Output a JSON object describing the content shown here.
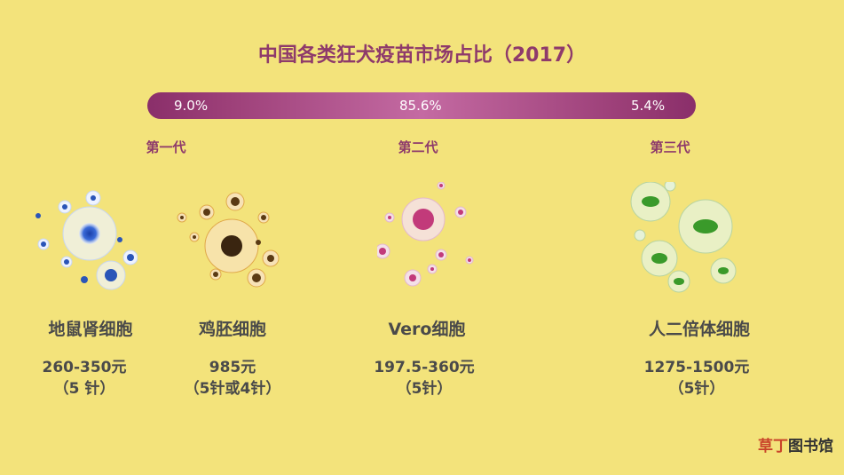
{
  "title": "中国各类狂犬疫苗市场占比（2017）",
  "bar": {
    "segments": [
      {
        "label": "9.0%",
        "value": 9.0
      },
      {
        "label": "85.6%",
        "value": 85.6
      },
      {
        "label": "5.4%",
        "value": 5.4
      }
    ]
  },
  "generations": [
    "第一代",
    "第二代",
    "第三代"
  ],
  "cells": [
    {
      "name": "地鼠肾细胞",
      "price": "260-350元",
      "doses": "（5 针）",
      "color": "#2a55b8"
    },
    {
      "name": "鸡胚细胞",
      "price": "985元",
      "doses": "（5针或4针）",
      "color": "#5a3a14"
    },
    {
      "name": "Vero细胞",
      "price": "197.5-360元",
      "doses": "（5针）",
      "color": "#c23a7a"
    },
    {
      "name": "人二倍体细胞",
      "price": "1275-1500元",
      "doses": "（5针）",
      "color": "#3a9a2a"
    }
  ],
  "watermark": {
    "highlight": "草丁",
    "rest": "图书馆"
  }
}
